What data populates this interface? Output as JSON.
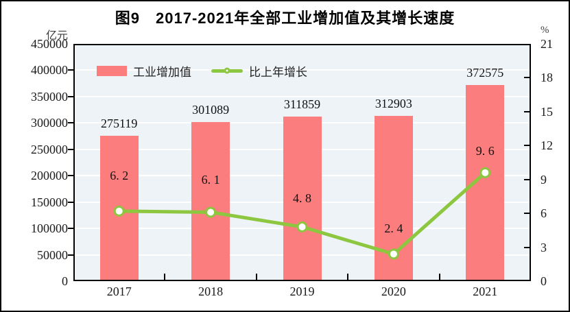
{
  "title": "图9　2017-2021年全部工业增加值及其增长速度",
  "left_axis": {
    "unit": "亿元",
    "ticks": [
      "450000",
      "400000",
      "350000",
      "300000",
      "250000",
      "200000",
      "150000",
      "100000",
      "50000",
      "0"
    ]
  },
  "right_axis": {
    "unit": "%",
    "ticks": [
      "21",
      "18",
      "15",
      "12",
      "9",
      "6",
      "3",
      "0"
    ]
  },
  "legend": [
    {
      "label": "工业增加值",
      "type": "bar",
      "color": "#FB7D7D"
    },
    {
      "label": "比上年增长",
      "type": "line",
      "color": "#8DC63F"
    }
  ],
  "chart_data": {
    "type": "bar",
    "subtype": "bar+line dual axis",
    "title": "图9　2017-2021年全部工业增加值及其增长速度",
    "categories": [
      "2017",
      "2018",
      "2019",
      "2020",
      "2021"
    ],
    "series": [
      {
        "name": "工业增加值",
        "type": "bar",
        "axis": "left",
        "values": [
          275119,
          301089,
          311859,
          312903,
          372575
        ],
        "labels": [
          "275119",
          "301089",
          "311859",
          "312903",
          "372575"
        ],
        "color": "#FB7D7D"
      },
      {
        "name": "比上年增长",
        "type": "line",
        "axis": "right",
        "values": [
          6.2,
          6.1,
          4.8,
          2.4,
          9.6
        ],
        "labels": [
          "6. 2",
          "6. 1",
          "4. 8",
          "2. 4",
          "9. 6"
        ],
        "color": "#8DC63F"
      }
    ],
    "left_ylabel": "亿元",
    "right_ylabel": "%",
    "left_ylim": [
      0,
      450000
    ],
    "left_step": 50000,
    "right_ylim": [
      0,
      21
    ],
    "right_step": 3,
    "grid": true,
    "legend_position": "inside top-left",
    "colors": {
      "plot_bg": "#EDF3F7",
      "gridline": "#FFFFFF",
      "frame": "#000000",
      "marker_fill": "#FFFFFF"
    }
  }
}
